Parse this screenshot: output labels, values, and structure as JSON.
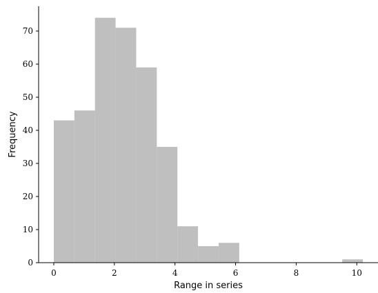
{
  "chart_data": {
    "type": "bar",
    "title": "",
    "xlabel": "Range in series",
    "ylabel": "Frequency",
    "xlim": [
      -0.5,
      10.7
    ],
    "ylim": [
      0,
      77.5
    ],
    "xticks": [
      0,
      2,
      4,
      6,
      8,
      10
    ],
    "yticks": [
      0,
      10,
      20,
      30,
      40,
      50,
      60,
      70
    ],
    "bin_edges": [
      0.0,
      0.68,
      1.36,
      2.04,
      2.72,
      3.4,
      4.08,
      4.76,
      5.44,
      6.12,
      6.8,
      7.48,
      8.16,
      8.84,
      9.52,
      10.2
    ],
    "values": [
      43,
      46,
      74,
      71,
      59,
      35,
      11,
      5,
      6,
      0,
      0,
      0,
      0,
      0,
      1
    ],
    "bar_color": "#bfbfbf",
    "grid": false,
    "legend": "none"
  }
}
